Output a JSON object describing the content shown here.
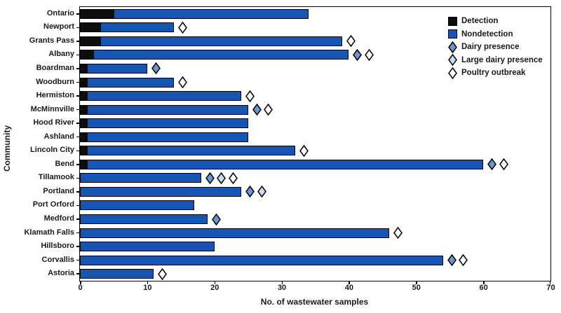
{
  "figure": {
    "x_axis_title": "No. of wastewater samples",
    "y_axis_title": "Community"
  },
  "colors": {
    "detection": "#0d0d0d",
    "nondetection": "#1755b4",
    "dairy": "#6897d2",
    "large_dairy": "#c8dcf2",
    "poultry": "#ffffff",
    "frame": "#000000"
  },
  "legend": [
    {
      "label": "Detection",
      "swatch": "square",
      "color_key": "detection"
    },
    {
      "label": "Nondetection",
      "swatch": "square",
      "color_key": "nondetection"
    },
    {
      "label": "Dairy presence",
      "swatch": "diamond",
      "color_key": "dairy"
    },
    {
      "label": "Large dairy presence",
      "swatch": "diamond",
      "color_key": "large_dairy"
    },
    {
      "label": "Poultry outbreak",
      "swatch": "diamond",
      "color_key": "poultry"
    }
  ],
  "chart_data": {
    "type": "bar",
    "orientation": "horizontal",
    "stacked": true,
    "title": "",
    "xlabel": "No. of wastewater samples",
    "ylabel": "Community",
    "xlim": [
      0,
      70
    ],
    "xticks": [
      0,
      10,
      20,
      30,
      40,
      50,
      60,
      70
    ],
    "grid": false,
    "legend_position": "top-right-inside",
    "categories": [
      "Ontario",
      "Newport",
      "Grants Pass",
      "Albany",
      "Boardman",
      "Woodburn",
      "Hermiston",
      "McMinnville",
      "Hood River",
      "Ashland",
      "Lincoln City",
      "Bend",
      "Tillamook",
      "Portland",
      "Port Orford",
      "Medford",
      "Klamath Falls",
      "Hillsboro",
      "Corvallis",
      "Astoria"
    ],
    "series": [
      {
        "name": "Detection",
        "values": [
          5,
          3,
          3,
          2,
          1,
          1,
          1,
          1,
          1,
          1,
          1,
          1,
          0,
          0,
          0,
          0,
          0,
          0,
          0,
          0
        ]
      },
      {
        "name": "Nondetection",
        "values": [
          29,
          11,
          36,
          38,
          9,
          13,
          23,
          24,
          24,
          24,
          31,
          59,
          18,
          24,
          17,
          19,
          46,
          20,
          54,
          11
        ]
      }
    ],
    "totals": [
      34,
      14,
      39,
      40,
      10,
      14,
      24,
      25,
      25,
      25,
      32,
      60,
      18,
      24,
      17,
      19,
      46,
      20,
      54,
      11
    ],
    "markers": [
      [],
      [
        "poultry"
      ],
      [
        "poultry"
      ],
      [
        "dairy",
        "poultry"
      ],
      [
        "dairy"
      ],
      [
        "poultry"
      ],
      [
        "poultry"
      ],
      [
        "dairy",
        "poultry"
      ],
      [],
      [],
      [
        "poultry"
      ],
      [
        "dairy",
        "poultry"
      ],
      [
        "dairy",
        "large_dairy",
        "poultry"
      ],
      [
        "dairy",
        "large_dairy"
      ],
      [],
      [
        "dairy"
      ],
      [
        "poultry"
      ],
      [],
      [
        "dairy",
        "poultry"
      ],
      [
        "poultry"
      ]
    ],
    "marker_legend": {
      "dairy": "Dairy presence",
      "large_dairy": "Large dairy presence",
      "poultry": "Poultry outbreak"
    }
  }
}
